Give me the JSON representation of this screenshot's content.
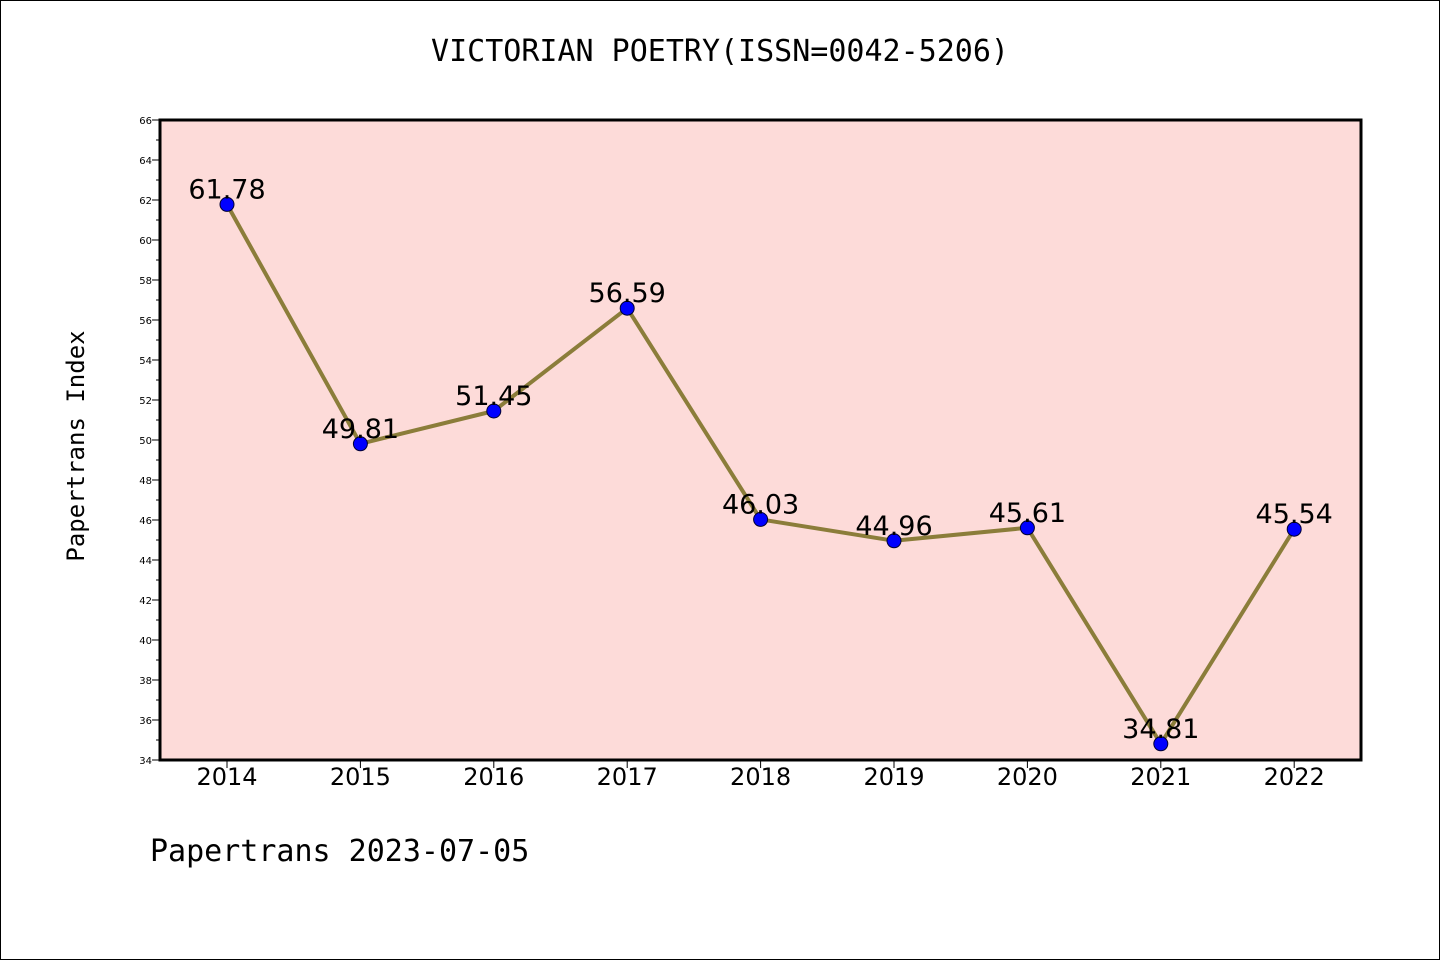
{
  "chart_data": {
    "type": "line",
    "title": "VICTORIAN POETRY(ISSN=0042-5206)",
    "xlabel": "",
    "ylabel": "Papertrans Index",
    "categories": [
      "2014",
      "2015",
      "2016",
      "2017",
      "2018",
      "2019",
      "2020",
      "2021",
      "2022"
    ],
    "series": [
      {
        "values": [
          61.78,
          49.81,
          51.45,
          56.59,
          46.03,
          44.96,
          45.61,
          34.81,
          45.54
        ],
        "labels": [
          "61.78",
          "49.81",
          "51.45",
          "56.59",
          "46.03",
          "44.96",
          "45.61",
          "34.81",
          "45.54"
        ],
        "line_color": "#8b7d3a",
        "marker_color": "#0000ff"
      }
    ],
    "ylim": [
      34,
      66
    ],
    "yticks": [
      "34",
      "36",
      "38",
      "40",
      "42",
      "44",
      "46",
      "48",
      "50",
      "52",
      "54",
      "56",
      "58",
      "60",
      "62",
      "64",
      "66"
    ],
    "plot_background": "#fddbd9",
    "grid": false,
    "legend": "none"
  },
  "footer": {
    "text": "Papertrans 2023-07-05"
  }
}
